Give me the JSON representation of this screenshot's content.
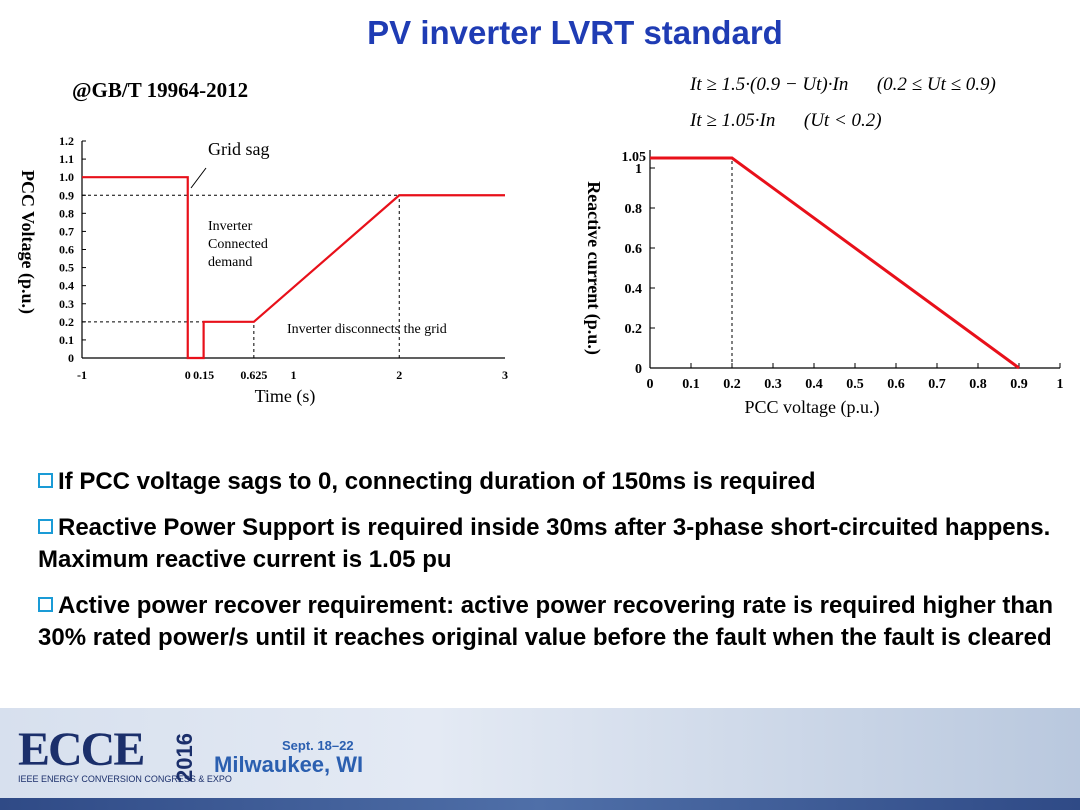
{
  "slide": {
    "title": "PV inverter LVRT standard",
    "standard": "@GB/T 19964-2012",
    "formula1": "It ≥ 1.5·(0.9 − Ut)·In      (0.2 ≤ Ut ≤ 0.9)",
    "formula2": "It ≥ 1.05·In      (Ut < 0.2)"
  },
  "chart_data": [
    {
      "type": "line",
      "xlabel": "Time (s)",
      "ylabel": "PCC Voltage (p.u.)",
      "xlim": [
        -1,
        3
      ],
      "ylim": [
        0,
        1.2
      ],
      "x_ticks": [
        "-1",
        "0",
        "0.15",
        "0.625",
        "1",
        "2",
        "3"
      ],
      "x_tick_values": [
        -1,
        0,
        0.15,
        0.625,
        1,
        2,
        3
      ],
      "y_ticks": [
        "0",
        "0.1",
        "0.2",
        "0.3",
        "0.4",
        "0.5",
        "0.6",
        "0.7",
        "0.8",
        "0.9",
        "1.0",
        "1.1",
        "1.2"
      ],
      "series": [
        {
          "color": "#e8101a",
          "x": [
            -1,
            0,
            0,
            0.15,
            0.15,
            0.625,
            2,
            3
          ],
          "y": [
            1.0,
            1.0,
            0,
            0,
            0.2,
            0.2,
            0.9,
            0.9
          ]
        }
      ],
      "guides": [
        {
          "from": [
            -1,
            0.9
          ],
          "to": [
            2,
            0.9
          ]
        },
        {
          "from": [
            -1,
            0.2
          ],
          "to": [
            0.15,
            0.2
          ]
        },
        {
          "from": [
            0.625,
            0
          ],
          "to": [
            0.625,
            0.2
          ]
        },
        {
          "from": [
            2,
            0
          ],
          "to": [
            2,
            0.9
          ]
        }
      ],
      "annotations": {
        "grid_sag": "Grid sag",
        "connected": [
          "Inverter",
          "Connected",
          "demand"
        ],
        "disconnect": "Inverter disconnects the grid"
      }
    },
    {
      "type": "line",
      "xlabel": "PCC voltage (p.u.)",
      "ylabel": "Reactive current (p.u.)",
      "xlim": [
        0,
        1
      ],
      "ylim": [
        0,
        1.05
      ],
      "x_ticks": [
        "0",
        "0.1",
        "0.2",
        "0.3",
        "0.4",
        "0.5",
        "0.6",
        "0.7",
        "0.8",
        "0.9",
        "1"
      ],
      "y_ticks": [
        "0",
        "0.2",
        "0.4",
        "0.6",
        "0.8",
        "1"
      ],
      "y_extra_tick": "1.05",
      "series": [
        {
          "color": "#e8101a",
          "x": [
            0,
            0.2,
            0.9
          ],
          "y": [
            1.05,
            1.05,
            0
          ]
        }
      ],
      "guides": [
        {
          "from": [
            0.2,
            0
          ],
          "to": [
            0.2,
            1.05
          ]
        }
      ]
    }
  ],
  "bullets": [
    "If PCC voltage sags to 0, connecting duration of 150ms is required",
    "Reactive Power Support is required inside 30ms after 3-phase short-circuited happens. Maximum reactive current is 1.05 pu",
    "Active power recover requirement: active power recovering rate is required higher than 30% rated power/s until it reaches original value before the fault when the fault is cleared"
  ],
  "footer": {
    "logo": "ECCE",
    "year": "2016",
    "logo_sub": "IEEE ENERGY CONVERSION CONGRESS & EXPO",
    "dates": "Sept. 18–22",
    "city": "Milwaukee, WI"
  }
}
